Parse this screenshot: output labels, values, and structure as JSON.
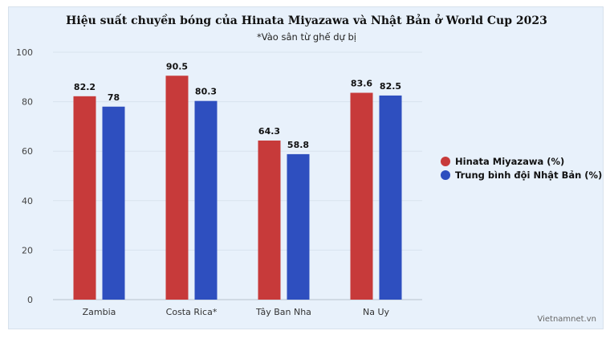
{
  "title": "Hiệu suất chuyền bóng của Hinata Miyazawa và Nhật Bản ở World Cup 2023",
  "subtitle": "*Vào sân từ ghế dự bị",
  "credit": "Vietnamnet.vn",
  "colors": {
    "hinata": "#c73a3a",
    "team": "#2e4fbf"
  },
  "chart_data": {
    "type": "bar",
    "categories": [
      "Zambia",
      "Costa Rica*",
      "Tây Ban Nha",
      "Na Uy"
    ],
    "series": [
      {
        "name": "Hinata Miyazawa (%)",
        "values": [
          82.2,
          90.5,
          64.3,
          83.6
        ]
      },
      {
        "name": "Trung bình đội Nhật Bản (%)",
        "values": [
          78,
          80.3,
          58.8,
          82.5
        ]
      }
    ],
    "yticks": [
      0,
      20,
      40,
      60,
      80,
      100
    ],
    "ylim": [
      0,
      100
    ],
    "grid": true,
    "legend_position": "right"
  }
}
